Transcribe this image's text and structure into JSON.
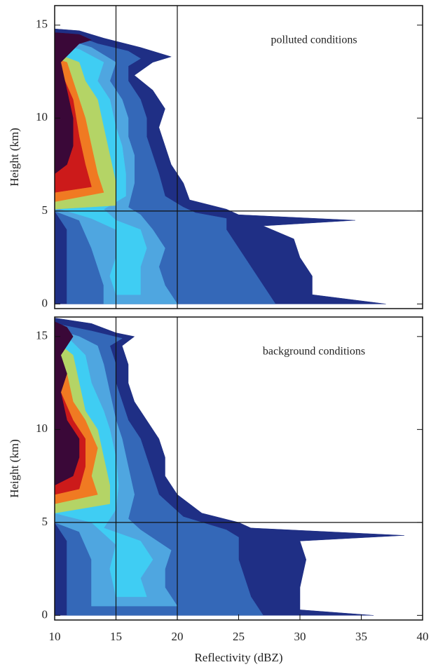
{
  "chart_data": [
    {
      "type": "contour",
      "annotation": "polluted conditions",
      "ylabel": "Height (km)",
      "xlim": [
        10,
        40
      ],
      "ylim": [
        -0.25,
        16.05
      ],
      "yticks": [
        0,
        5,
        10,
        15
      ],
      "hlines": [
        5
      ],
      "vlines": [
        15,
        20
      ],
      "levels": [
        {
          "color": "#1f2f85",
          "x": [
            10,
            37,
            31,
            31,
            30,
            29.5,
            27,
            34.5,
            25,
            24,
            21,
            20.5,
            19.5,
            19,
            18.5,
            19,
            18,
            16.5,
            18,
            19.5,
            17,
            14,
            12,
            10
          ],
          "y": [
            0,
            0,
            0.5,
            1.5,
            2.5,
            3.5,
            4.2,
            4.5,
            4.8,
            5.1,
            5.6,
            6.5,
            7.5,
            8.5,
            9.5,
            10.5,
            11.5,
            12.3,
            13,
            13.3,
            13.8,
            14.3,
            14.7,
            14.8
          ]
        },
        {
          "color": "#3468b8",
          "x": [
            11,
            28,
            27,
            26,
            25,
            24,
            24,
            21.5,
            20.5,
            19,
            18.5,
            18,
            17.5,
            17.5,
            17,
            16,
            16,
            17,
            16,
            13.5,
            11.5,
            10,
            10,
            11
          ],
          "y": [
            0,
            0,
            1,
            2,
            3,
            4,
            4.6,
            4.9,
            5.2,
            5.8,
            7,
            8,
            9,
            10,
            11,
            12,
            12.8,
            13.2,
            13.6,
            14,
            14.5,
            14.6,
            5,
            4
          ]
        },
        {
          "color": "#4fa6e0",
          "x": [
            14,
            20,
            19,
            18.5,
            19,
            18,
            17,
            16,
            16.5,
            16.5,
            16,
            16,
            15.5,
            14.5,
            15,
            13,
            11,
            10,
            10,
            12,
            13,
            14
          ],
          "y": [
            0,
            0,
            1,
            2,
            3,
            4,
            4.8,
            5.2,
            6.5,
            8,
            9,
            10,
            11,
            12,
            13,
            13.8,
            14.2,
            14.3,
            5,
            4.5,
            3,
            1
          ]
        },
        {
          "color": "#3fcdf3",
          "x": [
            15,
            17,
            17,
            17.5,
            17,
            15,
            14,
            15.8,
            15.8,
            15.5,
            15,
            14.5,
            13.5,
            14,
            12,
            10,
            10,
            13,
            15,
            15,
            14.5
          ],
          "y": [
            0.5,
            0.5,
            2,
            3,
            4,
            4.5,
            5.1,
            5.8,
            7,
            8.5,
            9.5,
            11,
            12,
            13,
            13.7,
            14,
            5.2,
            4.6,
            4,
            2.5,
            1.5
          ]
        },
        {
          "color": "#b4d466",
          "x": [
            10,
            15,
            15,
            14.5,
            14,
            13.5,
            12.5,
            12,
            10
          ],
          "y": [
            5.1,
            5.3,
            6.5,
            8,
            9.5,
            11,
            12,
            13,
            13.5
          ]
        },
        {
          "color": "#f07a22",
          "x": [
            10,
            14,
            13.5,
            13,
            12.5,
            11.5,
            11,
            10
          ],
          "y": [
            5.5,
            6,
            7,
            8.5,
            10,
            12,
            13,
            13.2
          ]
        },
        {
          "color": "#cc1a1a",
          "x": [
            10,
            13,
            12.5,
            12,
            11.5,
            10.5,
            10
          ],
          "y": [
            6,
            6.3,
            7.5,
            9,
            11,
            12.5,
            12.7
          ]
        },
        {
          "color": "#3a0838",
          "x": [
            10,
            11,
            11.5,
            11.5,
            11,
            10.5,
            12,
            13,
            12,
            10
          ],
          "y": [
            7,
            7.5,
            8.5,
            10,
            11.5,
            13,
            14,
            14.2,
            14.5,
            14.6
          ]
        }
      ]
    },
    {
      "type": "contour",
      "annotation": "background conditions",
      "ylabel": "Height (km)",
      "xlabel": "Reflectivity (dBZ)",
      "xlim": [
        10,
        40
      ],
      "ylim": [
        -0.25,
        16.05
      ],
      "xticks": [
        10,
        15,
        20,
        25,
        30,
        35,
        40
      ],
      "yticks": [
        0,
        5,
        10,
        15
      ],
      "hlines": [
        5
      ],
      "vlines": [
        15,
        20
      ],
      "levels": [
        {
          "color": "#1f2f85",
          "x": [
            10,
            36,
            30,
            30,
            30.5,
            30,
            38.5,
            26,
            25,
            22,
            20,
            19,
            19,
            18.5,
            17.5,
            16.5,
            16,
            16,
            15.5,
            16.5,
            15,
            13,
            10
          ],
          "y": [
            0,
            0,
            0.3,
            1.5,
            3,
            4,
            4.3,
            4.7,
            5,
            5.5,
            6.5,
            7.5,
            8.5,
            9.5,
            10.5,
            11.5,
            12.5,
            13.5,
            14.5,
            15,
            15.2,
            15.7,
            16
          ]
        },
        {
          "color": "#3468b8",
          "x": [
            11,
            27,
            26,
            25.5,
            25,
            25,
            24,
            20.5,
            18.5,
            18,
            17.5,
            17,
            16,
            15.5,
            15,
            15,
            14.5,
            15.5,
            13,
            10,
            10,
            11
          ],
          "y": [
            0,
            0,
            1,
            2,
            3,
            4.2,
            4.6,
            5.3,
            6.5,
            7.5,
            8.5,
            9.5,
            10.5,
            11.5,
            12.5,
            13.5,
            14.5,
            14.9,
            15.3,
            15.7,
            5,
            4
          ]
        },
        {
          "color": "#4fa6e0",
          "x": [
            13,
            20,
            19,
            19,
            19.5,
            17,
            16,
            16.5,
            16,
            15.5,
            15,
            14.5,
            14,
            13.5,
            12,
            10,
            10,
            12,
            13
          ],
          "y": [
            0.5,
            0.5,
            1.5,
            2.5,
            3.5,
            4.6,
            5.2,
            6.5,
            8,
            9.5,
            10.5,
            12,
            13.5,
            14.5,
            15,
            15.4,
            5,
            4.5,
            3
          ]
        },
        {
          "color": "#3fcdf3",
          "x": [
            15,
            17.5,
            17,
            18,
            17,
            14,
            15,
            15.2,
            15,
            14.5,
            14,
            13,
            12.5,
            11,
            10,
            10,
            13,
            15,
            14.5
          ],
          "y": [
            1,
            1,
            2,
            3,
            4,
            4.7,
            5.7,
            7,
            8.5,
            10,
            11,
            12.5,
            14,
            15,
            15.2,
            5.5,
            5,
            3.8,
            2.5
          ]
        },
        {
          "color": "#b4d466",
          "x": [
            10,
            14.5,
            14.5,
            14,
            13.5,
            12.5,
            12,
            11.5,
            10
          ],
          "y": [
            5.5,
            6,
            7,
            8.5,
            10,
            11,
            12.5,
            14,
            14.8
          ]
        },
        {
          "color": "#f07a22",
          "x": [
            10,
            13.5,
            13,
            13.5,
            12.5,
            11.5,
            11,
            10
          ],
          "y": [
            6,
            6.5,
            7.5,
            9,
            10.5,
            11.5,
            13,
            14.5
          ]
        },
        {
          "color": "#cc1a1a",
          "x": [
            10,
            12,
            12.5,
            12.5,
            11.5,
            10.5,
            10
          ],
          "y": [
            6.5,
            6.8,
            8,
            9.5,
            10.5,
            12,
            14
          ]
        },
        {
          "color": "#3a0838",
          "x": [
            10,
            11.5,
            12,
            12,
            11,
            10.5,
            11,
            10.5,
            11.5,
            11,
            10
          ],
          "y": [
            7,
            7.5,
            8.5,
            9.5,
            10.5,
            12,
            13,
            14,
            15,
            15.5,
            15.8
          ]
        }
      ]
    }
  ]
}
